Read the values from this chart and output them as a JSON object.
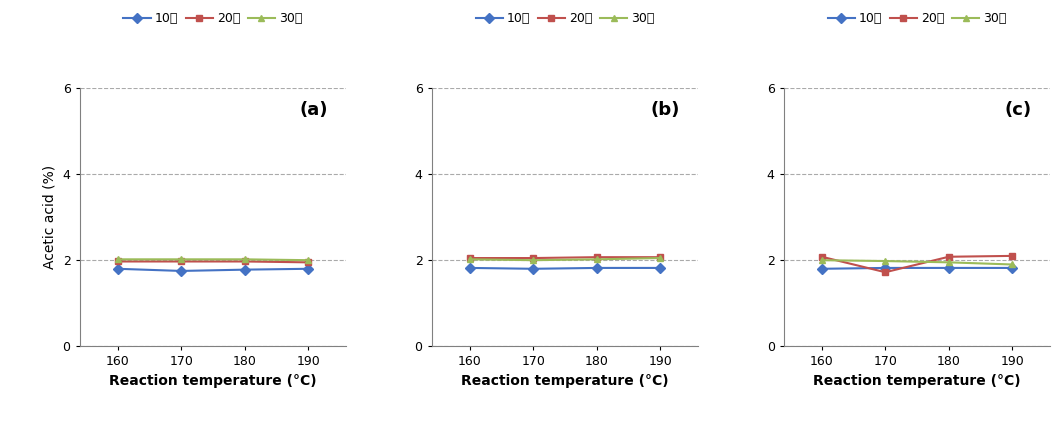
{
  "x": [
    160,
    170,
    180,
    190
  ],
  "panels": [
    {
      "label": "(a)",
      "series": {
        "10분": [
          1.8,
          1.75,
          1.78,
          1.8
        ],
        "20분": [
          1.97,
          1.97,
          1.97,
          1.95
        ],
        "30분": [
          2.02,
          2.02,
          2.02,
          2.0
        ]
      }
    },
    {
      "label": "(b)",
      "series": {
        "10분": [
          1.82,
          1.8,
          1.82,
          1.82
        ],
        "20분": [
          2.05,
          2.05,
          2.07,
          2.07
        ],
        "30분": [
          2.02,
          2.0,
          2.02,
          2.05
        ]
      }
    },
    {
      "label": "(c)",
      "series": {
        "10분": [
          1.8,
          1.82,
          1.82,
          1.82
        ],
        "20분": [
          2.08,
          1.72,
          2.08,
          2.1
        ],
        "30분": [
          2.0,
          1.98,
          1.95,
          1.9
        ]
      }
    }
  ],
  "colors": {
    "10분": "#4472C4",
    "20분": "#C0504D",
    "30분": "#9BBB59"
  },
  "markers": {
    "10분": "D",
    "20분": "s",
    "30분": "^"
  },
  "ylim": [
    0,
    6
  ],
  "yticks": [
    0,
    2,
    4,
    6
  ],
  "xticks": [
    160,
    170,
    180,
    190
  ],
  "ylabel": "Acetic acid (%)",
  "xlabel": "Reaction temperature (°C)",
  "legend_labels": [
    "10분",
    "20분",
    "30분"
  ],
  "background_color": "#ffffff",
  "grid_color": "#aaaaaa",
  "label_fontsize": 10,
  "tick_fontsize": 9,
  "legend_fontsize": 9,
  "panel_label_fontsize": 13,
  "linewidth": 1.5,
  "markersize": 5
}
